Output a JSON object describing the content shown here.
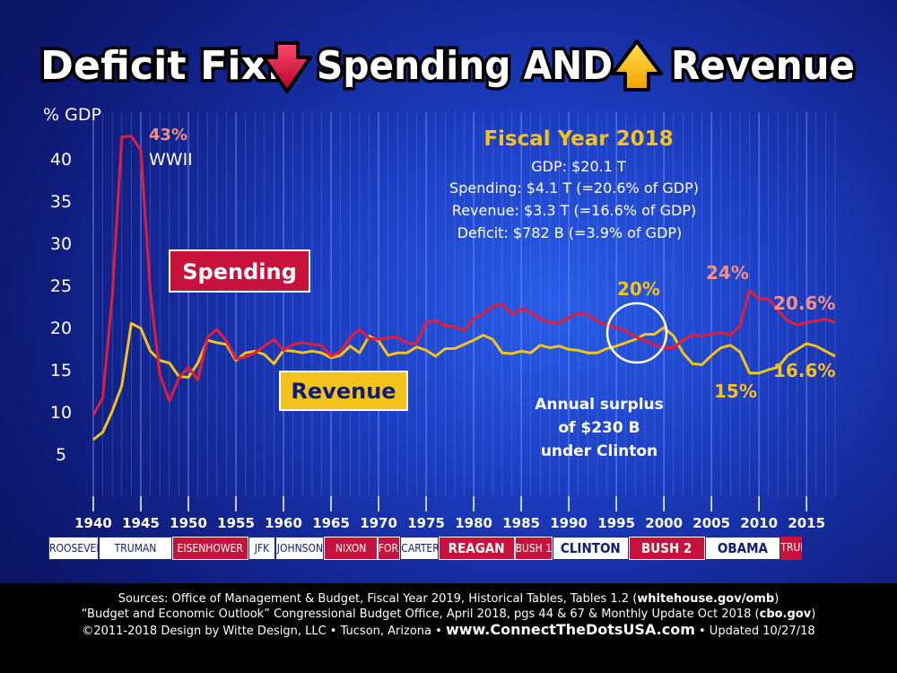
{
  "title": {
    "part1": "Deficit Fix:",
    "part2": "Spending AND",
    "part3": "Revenue"
  },
  "info": {
    "heading": "Fiscal Year 2018",
    "gdp": "GDP: $20.1 T",
    "spending": "Spending: $4.1 T (=20.6% of GDP)",
    "revenue": "Revenue: $3.3 T (=16.6% of GDP)",
    "deficit": "Deficit: $782 B (=3.9% of GDP)"
  },
  "chart_data": {
    "type": "line",
    "ylabel": "% GDP",
    "ylim": [
      0,
      45
    ],
    "yticks": [
      5,
      10,
      15,
      20,
      25,
      30,
      35,
      40
    ],
    "xlim": [
      1940,
      2018
    ],
    "xticks": [
      1940,
      1945,
      1950,
      1955,
      1960,
      1965,
      1970,
      1975,
      1980,
      1985,
      1990,
      1995,
      2000,
      2005,
      2010,
      2015
    ],
    "grid": "vertical",
    "series": [
      {
        "name": "Spending",
        "color": "#e01e3c",
        "x": [
          1940,
          1941,
          1942,
          1943,
          1944,
          1945,
          1946,
          1947,
          1948,
          1949,
          1950,
          1951,
          1952,
          1953,
          1954,
          1955,
          1956,
          1957,
          1958,
          1959,
          1960,
          1961,
          1962,
          1963,
          1964,
          1965,
          1966,
          1967,
          1968,
          1969,
          1970,
          1971,
          1972,
          1973,
          1974,
          1975,
          1976,
          1977,
          1978,
          1979,
          1980,
          1981,
          1982,
          1983,
          1984,
          1985,
          1986,
          1987,
          1988,
          1989,
          1990,
          1991,
          1992,
          1993,
          1994,
          1995,
          1996,
          1997,
          1998,
          1999,
          2000,
          2001,
          2002,
          2003,
          2004,
          2005,
          2006,
          2007,
          2008,
          2009,
          2010,
          2011,
          2012,
          2013,
          2014,
          2015,
          2016,
          2017,
          2018
        ],
        "values": [
          9.6,
          11.7,
          23.8,
          42.6,
          42.7,
          41.0,
          24.2,
          14.4,
          11.3,
          14.0,
          15.3,
          13.8,
          18.8,
          19.8,
          18.4,
          16.3,
          16.5,
          17.0,
          17.8,
          18.6,
          17.3,
          18.0,
          18.2,
          18.0,
          17.9,
          16.6,
          17.2,
          18.8,
          19.8,
          18.7,
          18.6,
          18.8,
          18.9,
          18.1,
          18.1,
          20.6,
          20.8,
          20.2,
          20.1,
          19.6,
          21.1,
          21.6,
          22.5,
          22.8,
          21.5,
          22.2,
          21.8,
          21.0,
          20.6,
          20.5,
          21.2,
          21.7,
          21.5,
          20.7,
          20.3,
          20.0,
          19.6,
          18.9,
          18.5,
          17.9,
          17.6,
          17.6,
          18.5,
          19.1,
          19.0,
          19.2,
          19.4,
          19.1,
          20.2,
          24.4,
          23.4,
          23.4,
          22.0,
          20.8,
          20.3,
          20.6,
          20.8,
          21.0,
          20.6
        ]
      },
      {
        "name": "Revenue",
        "color": "#f4c21b",
        "x": [
          1940,
          1941,
          1942,
          1943,
          1944,
          1945,
          1946,
          1947,
          1948,
          1949,
          1950,
          1951,
          1952,
          1953,
          1954,
          1955,
          1956,
          1957,
          1958,
          1959,
          1960,
          1961,
          1962,
          1963,
          1964,
          1965,
          1966,
          1967,
          1968,
          1969,
          1970,
          1971,
          1972,
          1973,
          1974,
          1975,
          1976,
          1977,
          1978,
          1979,
          1980,
          1981,
          1982,
          1983,
          1984,
          1985,
          1986,
          1987,
          1988,
          1989,
          1990,
          1991,
          1992,
          1993,
          1994,
          1995,
          1996,
          1997,
          1998,
          1999,
          2000,
          2001,
          2002,
          2003,
          2004,
          2005,
          2006,
          2007,
          2008,
          2009,
          2010,
          2011,
          2012,
          2013,
          2014,
          2015,
          2016,
          2017,
          2018
        ],
        "values": [
          6.7,
          7.6,
          10.1,
          13.1,
          20.5,
          19.9,
          17.2,
          16.1,
          15.8,
          14.2,
          14.1,
          15.8,
          18.5,
          18.2,
          18.0,
          16.1,
          17.0,
          17.2,
          16.8,
          15.7,
          17.3,
          17.2,
          17.0,
          17.2,
          17.0,
          16.4,
          16.7,
          17.8,
          17.0,
          19.0,
          18.4,
          16.7,
          17.0,
          17.0,
          17.7,
          17.3,
          16.6,
          17.5,
          17.5,
          18.0,
          18.5,
          19.1,
          18.6,
          17.0,
          16.9,
          17.2,
          17.0,
          17.9,
          17.6,
          17.8,
          17.4,
          17.3,
          17.0,
          17.0,
          17.5,
          17.8,
          18.2,
          18.6,
          19.2,
          19.2,
          20.0,
          19.0,
          17.0,
          15.7,
          15.6,
          16.7,
          17.6,
          17.9,
          17.1,
          14.6,
          14.6,
          15.0,
          15.3,
          16.7,
          17.4,
          18.1,
          17.8,
          17.2,
          16.6
        ]
      }
    ],
    "annotations": {
      "ww2_value": "43%",
      "ww2_label": "WWII",
      "spend_peak": "24%",
      "spend_end": "20.6%",
      "rev_peak": "20%",
      "rev_low": "15%",
      "rev_end": "16.6%",
      "surplus_line1": "Annual surplus",
      "surplus_line2": "of $230 B",
      "surplus_line3": "under Clinton"
    }
  },
  "presidents": [
    {
      "name": "ROOSEVELT",
      "party": "dem",
      "start": 1940,
      "end": 1945.3
    },
    {
      "name": "TRUMAN",
      "party": "dem",
      "start": 1945.3,
      "end": 1953
    },
    {
      "name": "EISENHOWER",
      "party": "rep",
      "start": 1953,
      "end": 1961
    },
    {
      "name": "JFK",
      "party": "dem",
      "start": 1961,
      "end": 1963.9
    },
    {
      "name": "JOHNSON",
      "party": "dem",
      "start": 1963.9,
      "end": 1969
    },
    {
      "name": "NIXON",
      "party": "rep",
      "start": 1969,
      "end": 1974.6
    },
    {
      "name": "FORD",
      "party": "rep",
      "start": 1974.6,
      "end": 1977
    },
    {
      "name": "CARTER",
      "party": "dem",
      "start": 1977,
      "end": 1981
    },
    {
      "name": "REAGAN",
      "party": "rep",
      "start": 1981,
      "end": 1989,
      "big": true
    },
    {
      "name": "BUSH 1",
      "party": "rep",
      "start": 1989,
      "end": 1993
    },
    {
      "name": "CLINTON",
      "party": "dem",
      "start": 1993,
      "end": 2001,
      "big": true
    },
    {
      "name": "BUSH 2",
      "party": "rep",
      "start": 2001,
      "end": 2009,
      "big": true
    },
    {
      "name": "OBAMA",
      "party": "dem",
      "start": 2009,
      "end": 2017,
      "big": true
    },
    {
      "name": "TRUMP",
      "party": "rep",
      "start": 2017,
      "end": 2019.2
    }
  ],
  "legend": {
    "spending": "Spending",
    "revenue": "Revenue"
  },
  "footer": {
    "line1_a": "Sources: Office of Management & Budget, Fiscal Year 2019, Historical Tables, Tables 1.2 (",
    "line1_b": "whitehouse.gov/omb",
    "line1_c": ")",
    "line2_a": "“Budget and Economic Outlook” Congressional Budget Office, April 2018, pgs 44 & 67 & Monthly Update Oct 2018 (",
    "line2_b": "cbo.gov",
    "line2_c": ")",
    "line3_a": "©2011-2018 Design by Witte Design, LLC • Tucson, Arizona •",
    "line3_b": "www.ConnectTheDotsUSA.com",
    "line3_c": "• Updated 10/27/18"
  },
  "colors": {
    "spending": "#e01e3c",
    "revenue": "#f4c21b",
    "annotation_pink": "#f58f86",
    "annotation_yellow": "#f4c21b",
    "background": "#1d3fc4"
  }
}
